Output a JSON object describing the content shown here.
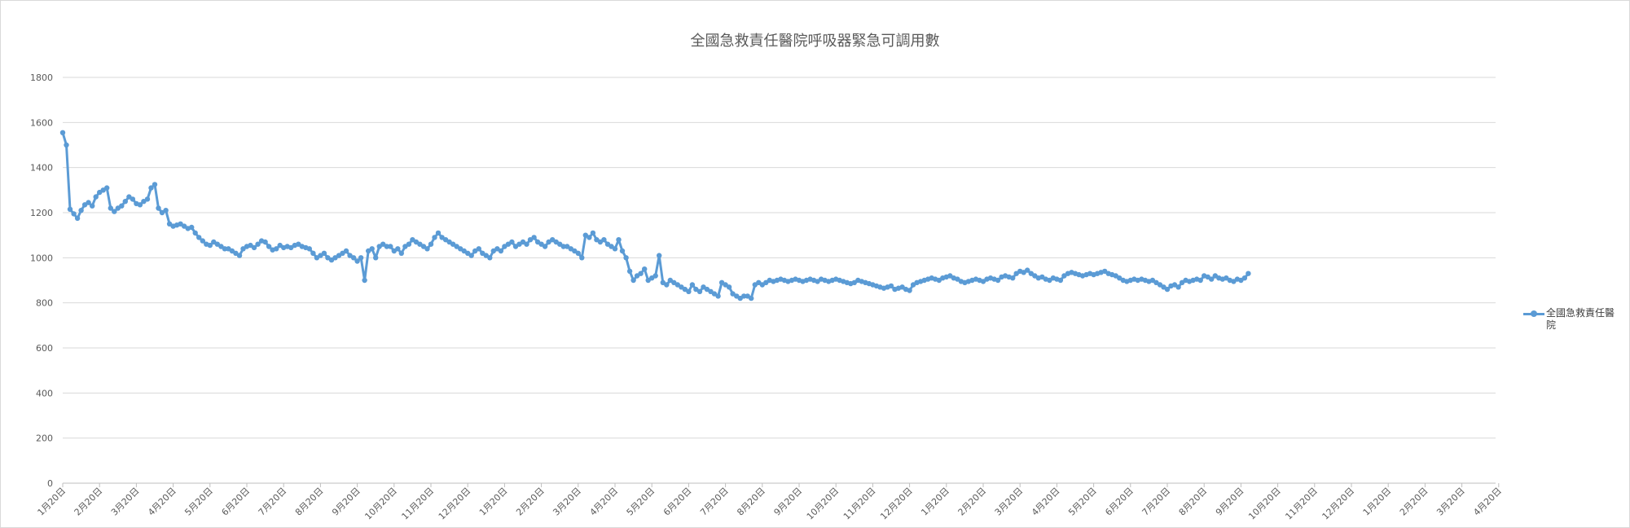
{
  "chart_data": {
    "type": "line",
    "title": "全國急救責任醫院呼吸器緊急可調用數",
    "xlabel": "",
    "ylabel": "",
    "ylim": [
      0,
      1800
    ],
    "yticks": [
      0,
      200,
      400,
      600,
      800,
      1000,
      1200,
      1400,
      1600,
      1800
    ],
    "x_tick_labels": [
      "1月20日",
      "2月20日",
      "3月20日",
      "4月20日",
      "5月20日",
      "6月20日",
      "7月20日",
      "8月20日",
      "9月20日",
      "10月20日",
      "11月20日",
      "12月20日",
      "1月20日",
      "2月20日",
      "3月20日",
      "4月20日",
      "5月20日",
      "6月20日",
      "7月20日",
      "8月20日",
      "9月20日",
      "10月20日",
      "11月20日",
      "12月20日",
      "1月20日",
      "2月20日",
      "3月20日",
      "4月20日",
      "5月20日",
      "6月20日",
      "7月20日",
      "8月20日",
      "9月20日",
      "10月20日",
      "11月20日",
      "12月20日",
      "1月20日",
      "2月20日",
      "3月20日",
      "4月20日"
    ],
    "grid": true,
    "legend_position": "right",
    "series": [
      {
        "name": "全國急救責任醫院",
        "color": "#5B9BD5",
        "x_start_tick": 0,
        "points_per_tick": 10,
        "values": [
          1555,
          1500,
          1215,
          1195,
          1175,
          1210,
          1235,
          1245,
          1230,
          1270,
          1290,
          1300,
          1310,
          1220,
          1205,
          1220,
          1230,
          1250,
          1270,
          1260,
          1240,
          1235,
          1250,
          1260,
          1310,
          1325,
          1220,
          1200,
          1210,
          1150,
          1140,
          1145,
          1150,
          1140,
          1130,
          1135,
          1110,
          1090,
          1075,
          1060,
          1055,
          1070,
          1060,
          1050,
          1040,
          1040,
          1030,
          1020,
          1010,
          1040,
          1050,
          1055,
          1045,
          1060,
          1075,
          1070,
          1050,
          1035,
          1040,
          1055,
          1045,
          1050,
          1045,
          1055,
          1060,
          1050,
          1045,
          1040,
          1020,
          1000,
          1010,
          1020,
          1000,
          990,
          1000,
          1010,
          1020,
          1030,
          1010,
          1000,
          985,
          1000,
          900,
          1030,
          1040,
          1000,
          1050,
          1060,
          1050,
          1050,
          1030,
          1040,
          1020,
          1050,
          1060,
          1080,
          1070,
          1060,
          1050,
          1040,
          1060,
          1090,
          1110,
          1090,
          1080,
          1070,
          1060,
          1050,
          1040,
          1030,
          1020,
          1010,
          1030,
          1040,
          1020,
          1010,
          1000,
          1030,
          1040,
          1030,
          1050,
          1060,
          1070,
          1050,
          1060,
          1070,
          1060,
          1080,
          1090,
          1070,
          1060,
          1050,
          1070,
          1080,
          1070,
          1060,
          1050,
          1050,
          1040,
          1030,
          1020,
          1000,
          1100,
          1090,
          1110,
          1080,
          1070,
          1080,
          1060,
          1050,
          1040,
          1080,
          1030,
          1000,
          940,
          900,
          920,
          930,
          950,
          900,
          910,
          920,
          1010,
          890,
          880,
          900,
          890,
          880,
          870,
          860,
          850,
          880,
          860,
          850,
          870,
          860,
          850,
          840,
          830,
          890,
          880,
          870,
          840,
          830,
          820,
          830,
          830,
          820,
          880,
          890,
          880,
          890,
          900,
          895,
          900,
          905,
          900,
          895,
          900,
          905,
          900,
          895,
          900,
          905,
          900,
          895,
          905,
          900,
          895,
          900,
          905,
          900,
          895,
          890,
          885,
          890,
          900,
          895,
          890,
          885,
          880,
          875,
          870,
          865,
          870,
          875,
          860,
          865,
          870,
          860,
          855,
          880,
          890,
          895,
          900,
          905,
          910,
          905,
          900,
          910,
          915,
          920,
          910,
          905,
          895,
          890,
          895,
          900,
          905,
          900,
          895,
          905,
          910,
          905,
          900,
          915,
          920,
          915,
          910,
          930,
          940,
          935,
          945,
          930,
          920,
          910,
          915,
          905,
          900,
          910,
          905,
          900,
          920,
          930,
          935,
          930,
          925,
          920,
          925,
          930,
          925,
          930,
          935,
          940,
          930,
          925,
          920,
          910,
          900,
          895,
          900,
          905,
          900,
          905,
          900,
          895,
          900,
          890,
          880,
          870,
          860,
          875,
          880,
          870,
          890,
          900,
          895,
          900,
          905,
          900,
          920,
          915,
          905,
          920,
          910,
          905,
          910,
          900,
          895,
          905,
          900,
          910,
          930
        ]
      }
    ]
  }
}
